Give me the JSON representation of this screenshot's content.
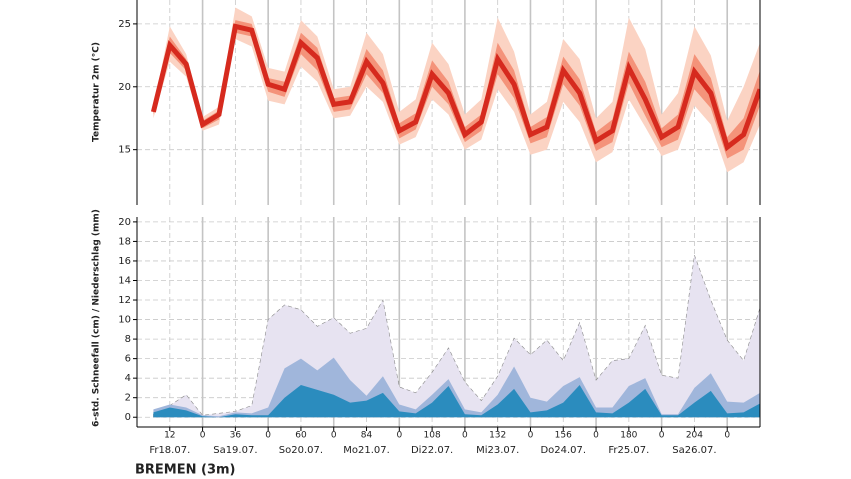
{
  "chart_data": [
    {
      "type": "band",
      "ylabel": "Temperatur 2m (°C)",
      "x": [
        6,
        12,
        18,
        24,
        30,
        36,
        42,
        48,
        54,
        60,
        66,
        72,
        78,
        84,
        90,
        96,
        102,
        108,
        114,
        120,
        126,
        132,
        138,
        144,
        150,
        156,
        162,
        168,
        174,
        180,
        186,
        192,
        198,
        204,
        210,
        216,
        222,
        228
      ],
      "xlim": [
        0,
        228
      ],
      "ylim": [
        10.6,
        26.9
      ],
      "yticks": [
        15,
        20,
        25
      ],
      "grid": true,
      "median": {
        "color": "#d62a1e",
        "values": [
          18.0,
          23.3,
          21.8,
          17.0,
          17.8,
          24.8,
          24.5,
          20.2,
          19.8,
          23.5,
          22.3,
          18.6,
          18.8,
          22.0,
          20.3,
          16.5,
          17.2,
          21.0,
          19.5,
          16.2,
          17.2,
          22.2,
          20.2,
          16.2,
          16.8,
          21.3,
          19.5,
          15.7,
          16.5,
          21.5,
          19.0,
          16.0,
          16.8,
          21.2,
          19.5,
          15.2,
          16.2,
          19.8
        ]
      },
      "bands": [
        {
          "color": "#fbd3c3",
          "high": [
            18.3,
            24.8,
            22.6,
            17.6,
            18.4,
            26.3,
            25.6,
            21.5,
            21.2,
            25.3,
            24.0,
            19.8,
            20.0,
            24.3,
            22.6,
            18.0,
            19.0,
            23.5,
            21.8,
            17.8,
            19.0,
            25.5,
            22.8,
            17.8,
            18.8,
            23.8,
            22.2,
            17.5,
            18.8,
            25.5,
            23.0,
            17.8,
            19.5,
            24.8,
            22.5,
            17.3,
            20.0,
            23.5
          ],
          "low": [
            17.5,
            22.0,
            20.8,
            16.5,
            17.0,
            23.8,
            23.2,
            18.9,
            18.6,
            21.6,
            20.4,
            17.5,
            17.7,
            20.0,
            18.8,
            15.4,
            16.0,
            19.0,
            17.8,
            15.0,
            15.8,
            19.8,
            18.0,
            14.6,
            15.0,
            18.8,
            17.2,
            14.0,
            14.8,
            19.0,
            16.8,
            14.5,
            15.0,
            18.5,
            17.0,
            13.2,
            14.0,
            17.0
          ]
        },
        {
          "color": "#f4937a",
          "high": [
            18.1,
            24.0,
            22.2,
            17.3,
            18.1,
            25.3,
            25.0,
            20.7,
            20.4,
            24.3,
            23.1,
            19.1,
            19.3,
            23.0,
            21.3,
            17.1,
            17.9,
            22.1,
            20.4,
            16.8,
            17.8,
            23.5,
            21.3,
            16.8,
            17.6,
            22.4,
            20.6,
            16.4,
            17.4,
            22.8,
            20.4,
            16.7,
            17.8,
            22.6,
            20.7,
            16.0,
            17.5,
            21.3
          ],
          "low": [
            17.8,
            22.7,
            21.3,
            16.7,
            17.4,
            24.3,
            24.0,
            19.6,
            19.2,
            22.6,
            21.3,
            18.0,
            18.2,
            21.0,
            19.5,
            15.9,
            16.6,
            20.0,
            18.6,
            15.6,
            16.5,
            21.0,
            19.1,
            15.5,
            16.0,
            20.2,
            18.5,
            14.9,
            15.6,
            20.3,
            17.7,
            15.2,
            15.8,
            19.8,
            18.3,
            14.3,
            15.0,
            18.5
          ]
        }
      ]
    },
    {
      "type": "area",
      "title": "BREMEN (3m)",
      "ylabel": "6-std. Schneefall (cm) / Niederschlag (mm)",
      "x": [
        6,
        12,
        18,
        24,
        30,
        36,
        42,
        48,
        54,
        60,
        66,
        72,
        78,
        84,
        90,
        96,
        102,
        108,
        114,
        120,
        126,
        132,
        138,
        144,
        150,
        156,
        162,
        168,
        174,
        180,
        186,
        192,
        198,
        204,
        210,
        216,
        222,
        228
      ],
      "xlim": [
        0,
        228
      ],
      "ylim": [
        -1,
        20.5
      ],
      "yticks": [
        0,
        2,
        4,
        6,
        8,
        10,
        12,
        14,
        16,
        18,
        20
      ],
      "grid": true,
      "xticks": [
        12,
        {
          "value": 24,
          "label": "0"
        },
        36,
        {
          "value": 48,
          "label": "0"
        },
        60,
        {
          "value": 72,
          "label": "0"
        },
        84,
        {
          "value": 96,
          "label": "0"
        },
        108,
        {
          "value": 120,
          "label": "0"
        },
        132,
        {
          "value": 144,
          "label": "0"
        },
        156,
        {
          "value": 168,
          "label": "0"
        },
        180,
        {
          "value": 192,
          "label": "0"
        },
        204,
        {
          "value": 216,
          "label": "0"
        }
      ],
      "day_labels": [
        {
          "value": 12,
          "label": "Fr18.07."
        },
        {
          "value": 36,
          "label": "Sa19.07."
        },
        {
          "value": 60,
          "label": "So20.07."
        },
        {
          "value": 84,
          "label": "Mo21.07."
        },
        {
          "value": 108,
          "label": "Di22.07."
        },
        {
          "value": 132,
          "label": "Mi23.07."
        },
        {
          "value": 156,
          "label": "Do24.07."
        },
        {
          "value": 180,
          "label": "Fr25.07."
        },
        {
          "value": 204,
          "label": "Sa26.07."
        }
      ],
      "series": [
        {
          "color": "#e7e3f1",
          "values": [
            0.3,
            1.2,
            2.3,
            0.2,
            0.4,
            0.6,
            1.2,
            10.0,
            11.5,
            11.0,
            9.3,
            10.2,
            8.6,
            9.1,
            12.0,
            3.1,
            2.5,
            4.6,
            7.1,
            3.6,
            1.7,
            4.2,
            8.1,
            6.4,
            7.9,
            5.8,
            9.7,
            3.8,
            5.8,
            6.0,
            9.4,
            4.3,
            4.0,
            16.6,
            12.0,
            7.9,
            5.8,
            11.2
          ]
        },
        {
          "color": "#a0b6db",
          "values": [
            0.8,
            1.3,
            1.0,
            0.2,
            0.1,
            0.5,
            0.4,
            1.0,
            5.0,
            6.0,
            4.8,
            6.1,
            3.8,
            2.2,
            4.2,
            1.3,
            0.8,
            2.3,
            3.9,
            0.8,
            0.5,
            2.3,
            5.2,
            2.0,
            1.6,
            3.2,
            4.1,
            1.0,
            1.0,
            3.2,
            4.0,
            0.3,
            0.3,
            3.0,
            4.5,
            1.6,
            1.5,
            2.5
          ]
        },
        {
          "color": "#2b8cbe",
          "values": [
            0.5,
            1.0,
            0.7,
            0.1,
            0,
            0.3,
            0.2,
            0.2,
            2.0,
            3.3,
            2.8,
            2.3,
            1.5,
            1.7,
            2.5,
            0.6,
            0.4,
            1.5,
            3.2,
            0.3,
            0.2,
            1.3,
            2.9,
            0.5,
            0.7,
            1.5,
            3.3,
            0.5,
            0.4,
            1.5,
            2.9,
            0.2,
            0.2,
            1.5,
            2.7,
            0.4,
            0.5,
            1.4
          ]
        }
      ]
    }
  ]
}
